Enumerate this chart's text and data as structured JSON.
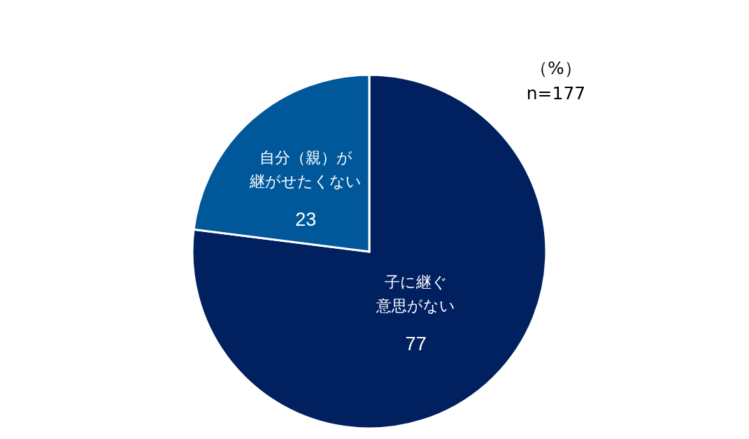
{
  "chart_data": {
    "type": "pie",
    "categories": [
      "子に継ぐ意思がない",
      "自分（親）が継がせたくない"
    ],
    "values": [
      77,
      23
    ],
    "colors": [
      "#002060",
      "#00589b"
    ],
    "data_labels": true,
    "annotations": [
      "（%）",
      "n=177"
    ]
  }
}
